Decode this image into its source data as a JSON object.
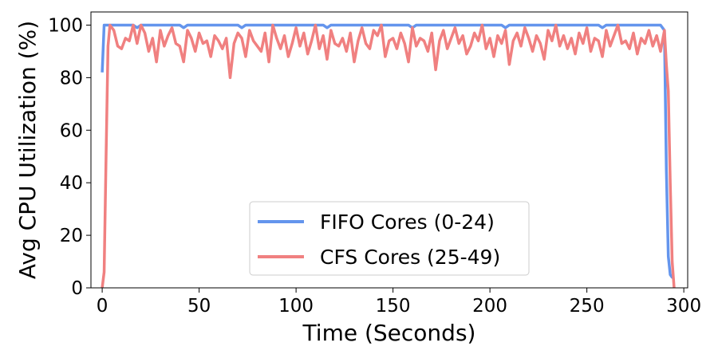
{
  "chart_data": {
    "type": "line",
    "xlabel": "Time (Seconds)",
    "ylabel": "Avg CPU Utilization (%)",
    "x": [
      0,
      1,
      2,
      3,
      4,
      6,
      8,
      10,
      12,
      14,
      16,
      18,
      20,
      22,
      24,
      26,
      28,
      30,
      32,
      34,
      36,
      38,
      40,
      42,
      44,
      46,
      48,
      50,
      52,
      54,
      56,
      58,
      60,
      62,
      64,
      66,
      68,
      70,
      72,
      74,
      76,
      78,
      80,
      82,
      84,
      86,
      88,
      90,
      92,
      94,
      96,
      98,
      100,
      102,
      104,
      106,
      108,
      110,
      112,
      114,
      116,
      118,
      120,
      122,
      124,
      126,
      128,
      130,
      132,
      134,
      136,
      138,
      140,
      142,
      144,
      146,
      148,
      150,
      152,
      154,
      156,
      158,
      160,
      162,
      164,
      166,
      168,
      170,
      172,
      174,
      176,
      178,
      180,
      182,
      184,
      186,
      188,
      190,
      192,
      194,
      196,
      198,
      200,
      202,
      204,
      206,
      208,
      210,
      212,
      214,
      216,
      218,
      220,
      222,
      224,
      226,
      228,
      230,
      232,
      234,
      236,
      238,
      240,
      242,
      244,
      246,
      248,
      250,
      252,
      254,
      256,
      258,
      260,
      262,
      264,
      266,
      268,
      270,
      272,
      274,
      276,
      278,
      280,
      282,
      284,
      286,
      288,
      290,
      291,
      292,
      293,
      294,
      295
    ],
    "series": [
      {
        "name": "FIFO Cores (0-24)",
        "color": "#6495ed",
        "values": [
          82,
          100,
          100,
          100,
          100,
          100,
          100,
          100,
          100,
          100,
          100,
          99,
          100,
          100,
          100,
          100,
          100,
          100,
          100,
          100,
          100,
          100,
          100,
          99,
          100,
          100,
          100,
          100,
          100,
          100,
          100,
          100,
          100,
          100,
          100,
          100,
          100,
          100,
          99,
          100,
          100,
          100,
          100,
          100,
          100,
          100,
          100,
          100,
          100,
          100,
          100,
          100,
          100,
          100,
          100,
          100,
          100,
          100,
          100,
          100,
          99,
          100,
          100,
          100,
          100,
          100,
          100,
          100,
          100,
          100,
          100,
          100,
          100,
          100,
          100,
          100,
          100,
          100,
          100,
          100,
          100,
          100,
          99,
          100,
          100,
          100,
          100,
          100,
          100,
          100,
          100,
          100,
          100,
          100,
          100,
          100,
          100,
          100,
          100,
          100,
          100,
          100,
          100,
          100,
          100,
          100,
          99,
          100,
          100,
          100,
          100,
          100,
          100,
          100,
          100,
          100,
          100,
          100,
          100,
          100,
          100,
          100,
          100,
          100,
          100,
          100,
          100,
          100,
          100,
          100,
          100,
          99,
          100,
          100,
          100,
          100,
          100,
          100,
          100,
          100,
          100,
          100,
          100,
          100,
          100,
          100,
          100,
          98,
          45,
          12,
          5,
          4,
          4
        ]
      },
      {
        "name": "CFS Cores (25-49)",
        "color": "#f08080",
        "values": [
          0,
          6,
          50,
          92,
          100,
          98,
          92,
          91,
          95,
          94,
          100,
          93,
          100,
          97,
          90,
          95,
          86,
          98,
          92,
          96,
          99,
          93,
          92,
          86,
          98,
          95,
          90,
          97,
          93,
          94,
          88,
          96,
          94,
          91,
          95,
          80,
          93,
          97,
          95,
          88,
          98,
          94,
          92,
          90,
          97,
          86,
          100,
          95,
          91,
          96,
          88,
          93,
          99,
          92,
          97,
          89,
          94,
          100,
          91,
          96,
          87,
          98,
          93,
          92,
          95,
          90,
          97,
          86,
          94,
          99,
          93,
          91,
          98,
          96,
          100,
          88,
          94,
          95,
          91,
          97,
          93,
          86,
          99,
          92,
          95,
          94,
          90,
          97,
          83,
          94,
          98,
          91,
          95,
          99,
          93,
          96,
          89,
          92,
          97,
          94,
          100,
          91,
          95,
          88,
          96,
          93,
          98,
          85,
          94,
          97,
          92,
          99,
          95,
          90,
          96,
          93,
          87,
          98,
          94,
          100,
          92,
          96,
          91,
          95,
          89,
          97,
          93,
          99,
          90,
          95,
          94,
          88,
          98,
          92,
          96,
          100,
          93,
          94,
          91,
          97,
          89,
          95,
          93,
          98,
          92,
          96,
          90,
          98,
          85,
          75,
          40,
          10,
          0
        ]
      }
    ],
    "xlim": [
      -5.8,
      302
    ],
    "xticks": [
      0,
      50,
      100,
      150,
      200,
      250,
      300
    ],
    "ylim": [
      0,
      105
    ],
    "yticks": [
      0,
      20,
      40,
      60,
      80,
      100
    ],
    "legend": "lower center"
  }
}
